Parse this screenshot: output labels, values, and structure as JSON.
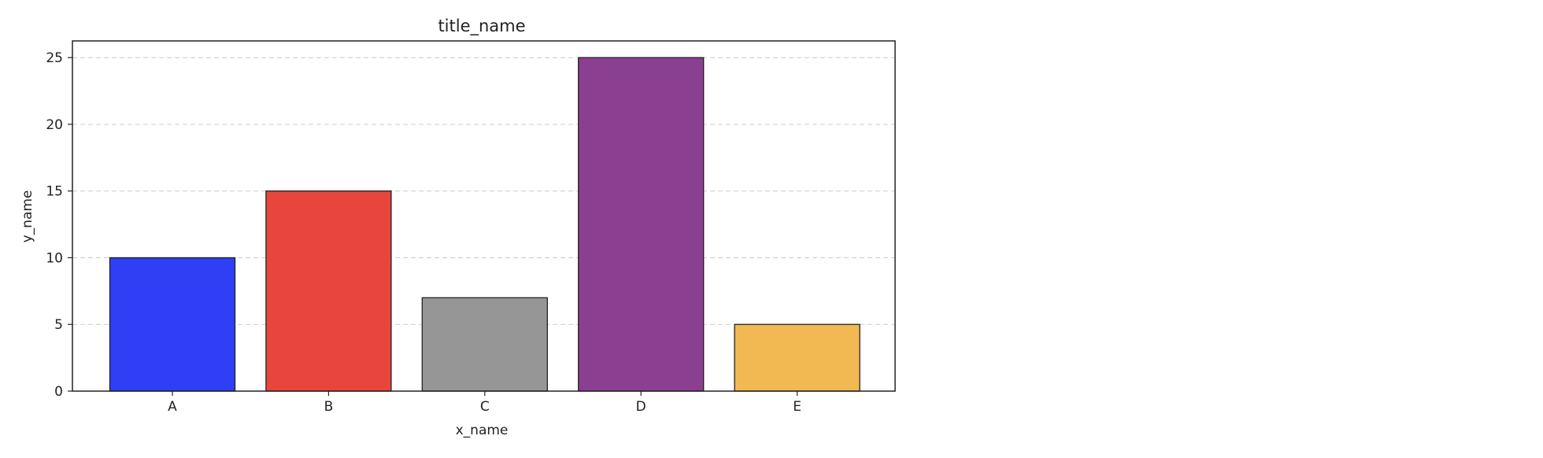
{
  "chart_data": {
    "type": "bar",
    "title": "title_name",
    "xlabel": "x_name",
    "ylabel": "y_name",
    "categories": [
      "A",
      "B",
      "C",
      "D",
      "E"
    ],
    "values": [
      10,
      15,
      7,
      25,
      5
    ],
    "colors": [
      "#2f3ff5",
      "#e8453c",
      "#969696",
      "#8b3f91",
      "#f2b851"
    ],
    "ylim": [
      0,
      26.25
    ],
    "yticks": [
      0,
      5,
      10,
      15,
      20,
      25
    ],
    "grid": true,
    "grid_axis": "y",
    "legend": false
  }
}
